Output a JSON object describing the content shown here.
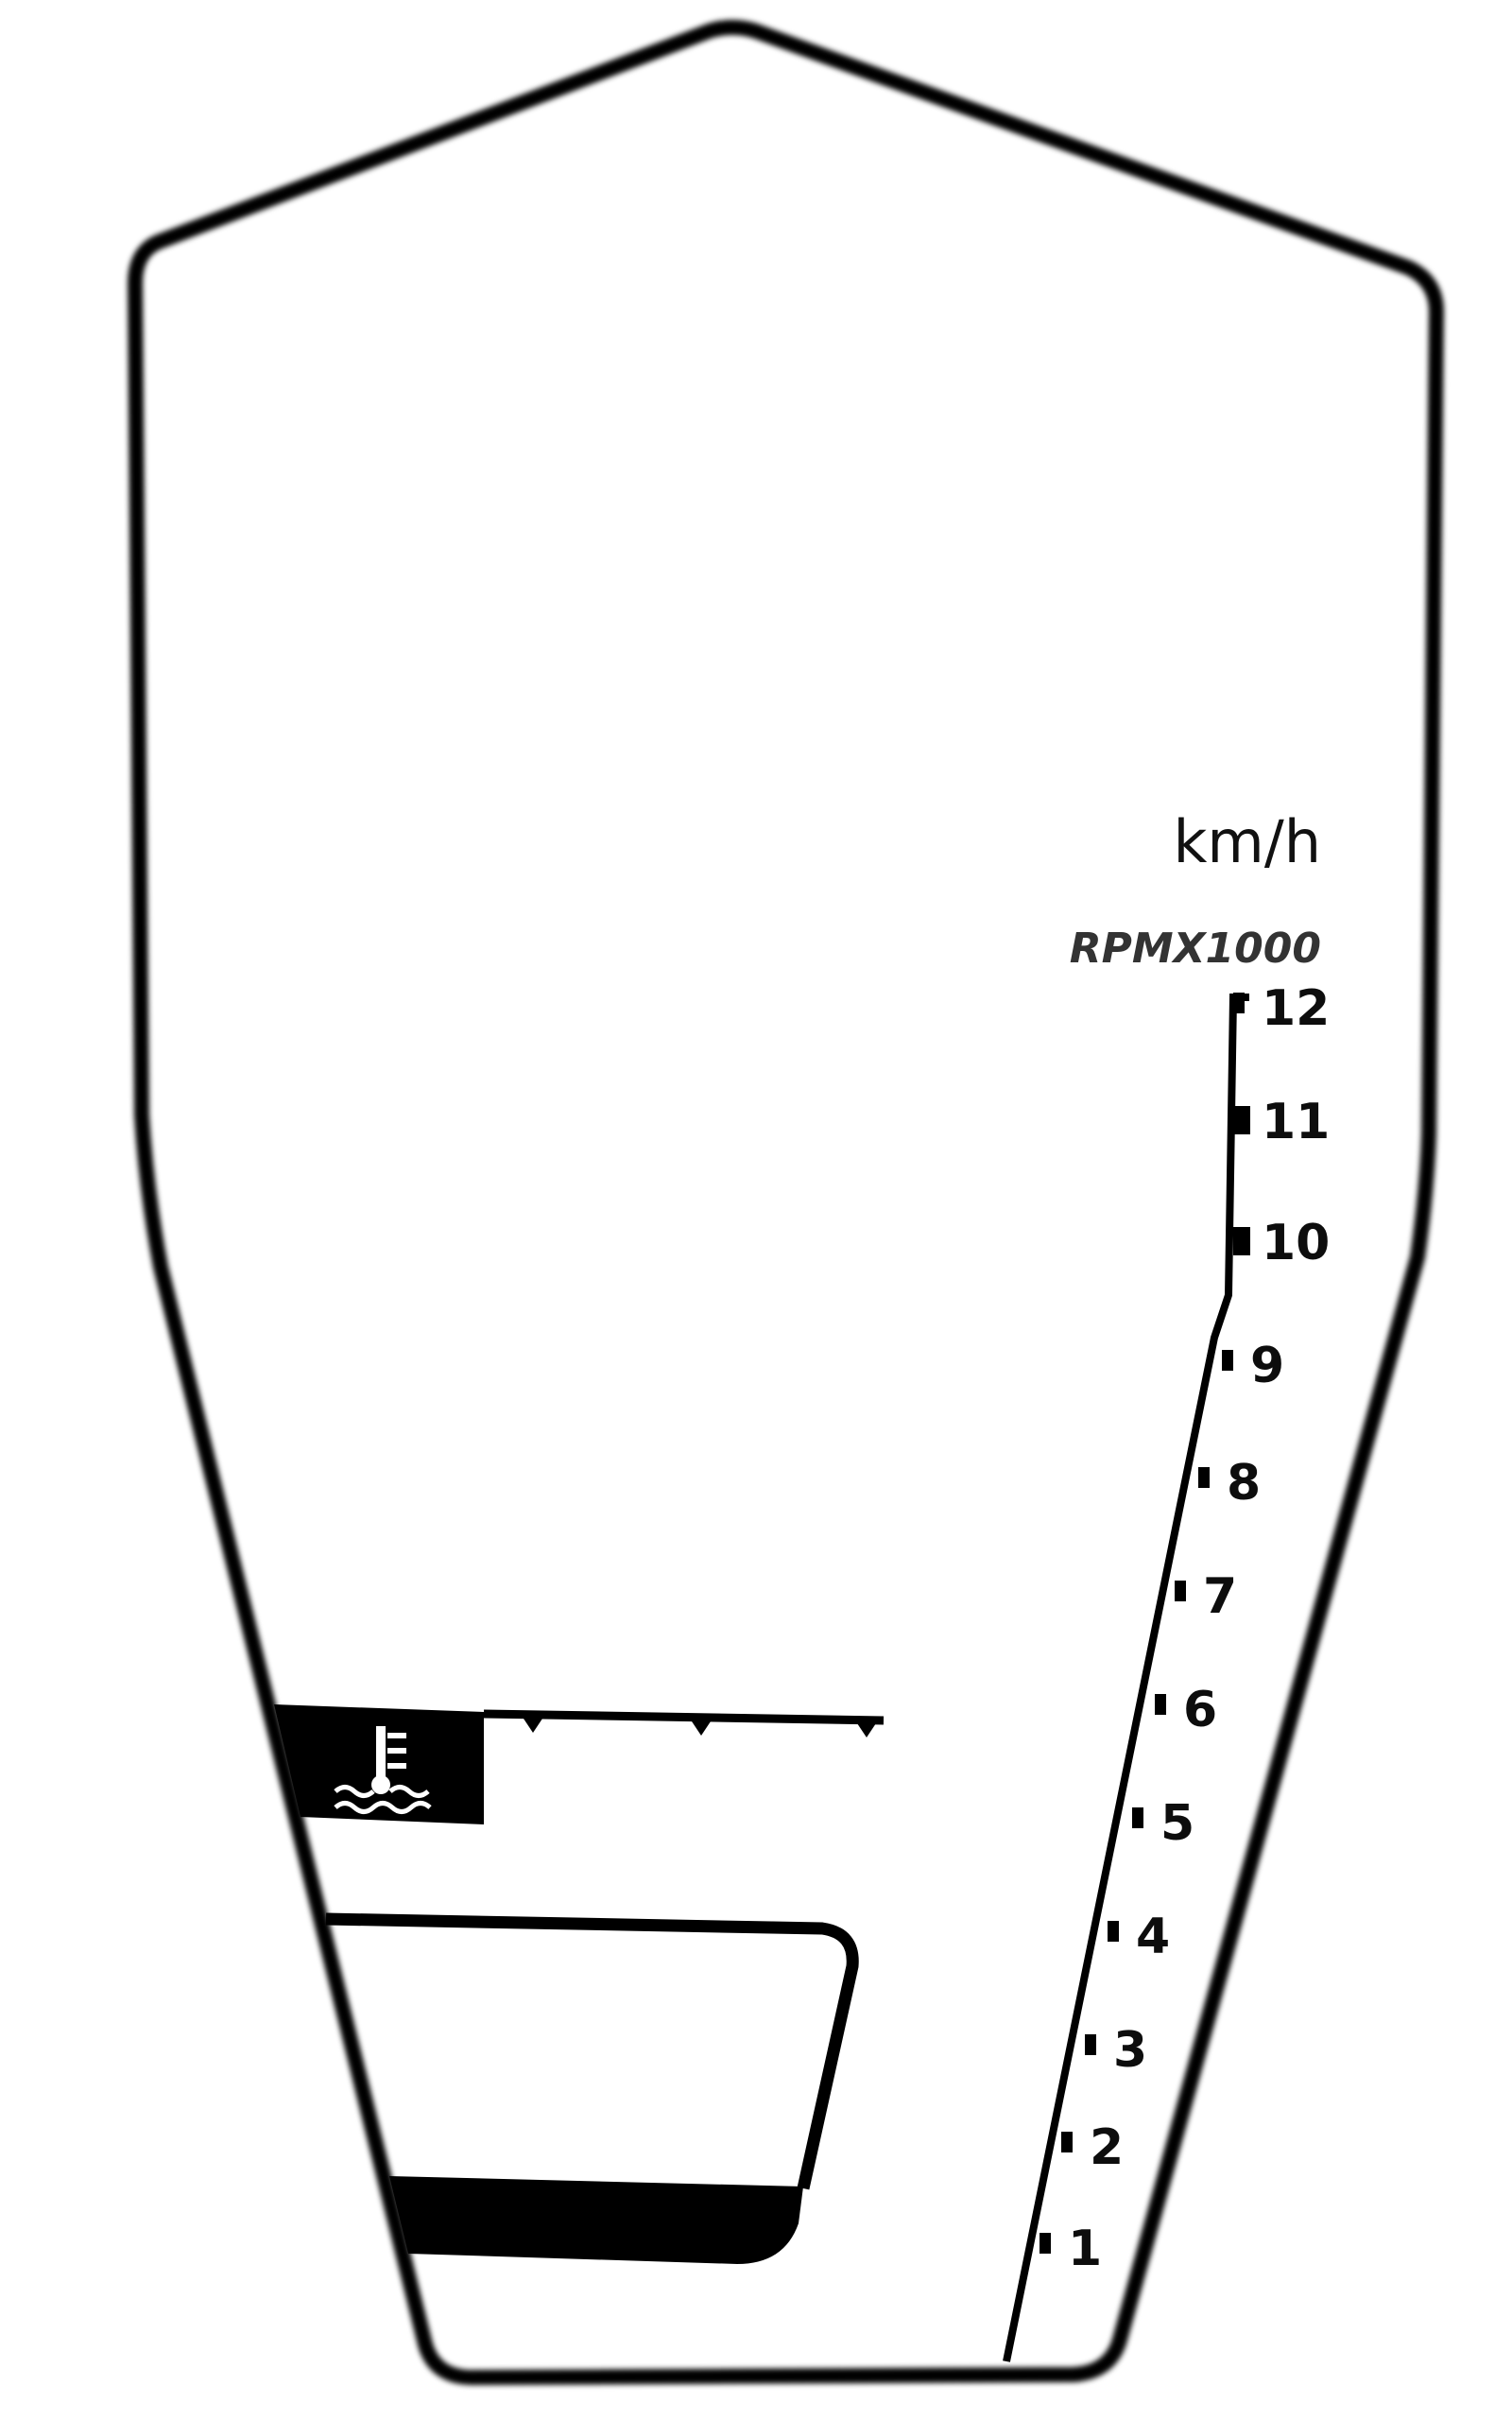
{
  "gauge": {
    "speed_unit": "km/h",
    "rpm_unit": "RPMX1000",
    "rpm_ticks": [
      "1",
      "2",
      "3",
      "4",
      "5",
      "6",
      "7",
      "8",
      "9",
      "10",
      "11",
      "12"
    ]
  },
  "indicators": {
    "coolant_icon": "coolant-temperature-icon",
    "coolant_scale_markers": 3
  },
  "colors": {
    "frame": "#000000",
    "background": "#ffffff",
    "text": "#0d0d0d"
  }
}
